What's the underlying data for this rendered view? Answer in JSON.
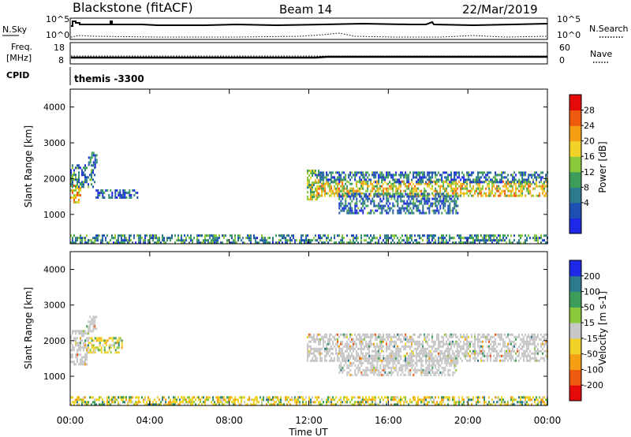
{
  "header": {
    "station": "Blackstone (fitACF)",
    "beam": "Beam 14",
    "date": "22/Mar/2019"
  },
  "top_panels": {
    "nsky_label": "N.Sky",
    "nsearch_label": "N.Search",
    "nsky_ticks": [
      "10^5",
      "10^0"
    ],
    "nsearch_ticks": [
      "10^5",
      "10^0"
    ],
    "freq_label_1": "Freq.",
    "freq_label_2": "[MHz]",
    "freq_ticks": [
      "18",
      "8"
    ],
    "nave_label": "Nave",
    "nave_ticks": [
      "60",
      "0"
    ],
    "cpid_label": "CPID",
    "cpid_value": "themis -3300"
  },
  "x_axis": {
    "title": "Time UT",
    "ticks": [
      "00:00",
      "04:00",
      "08:00",
      "12:00",
      "16:00",
      "20:00",
      "00:00"
    ]
  },
  "power_scale": {
    "title": "Power [dB]",
    "ticks": [
      "28",
      "24",
      "20",
      "16",
      "12",
      "8",
      "4"
    ],
    "colors": [
      "#1e28e6",
      "#1e50b4",
      "#2d7a8c",
      "#3c9d5a",
      "#8cc83c",
      "#f0d228",
      "#f5a014",
      "#f05a0f",
      "#e60a0a"
    ]
  },
  "velocity_scale": {
    "title": "Velocity [m s-1]",
    "ticks": [
      "200",
      "100",
      "50",
      "15",
      "-15",
      "-50",
      "-100",
      "-200"
    ],
    "colors": [
      "#e60a0a",
      "#f05a0f",
      "#f5a014",
      "#f0d228",
      "#c8c8c8",
      "#8cc83c",
      "#3c9d5a",
      "#2d7a8c",
      "#1e28e6"
    ]
  },
  "chart_data": [
    {
      "type": "heatmap",
      "name": "power",
      "xlabel": "Time UT",
      "ylabel": "Slant Range [km]",
      "xlim": [
        0,
        24
      ],
      "ylim": [
        180,
        4500
      ],
      "yticks": [
        1000,
        2000,
        3000,
        4000
      ],
      "colorbar": {
        "label": "Power [dB]",
        "range": [
          0,
          32
        ]
      },
      "regions": [
        {
          "t0": 0.0,
          "t1": 0.55,
          "r0": 1350,
          "r1": 1900,
          "value": 20
        },
        {
          "t0": 0.0,
          "t1": 1.25,
          "r0": 1800,
          "r1": 2400,
          "value": 9
        },
        {
          "t0": 0.9,
          "t1": 1.3,
          "r0": 2350,
          "r1": 2750,
          "value": 8
        },
        {
          "t0": 1.2,
          "t1": 3.4,
          "r0": 1450,
          "r1": 1700,
          "value": 6
        },
        {
          "t0": 0.0,
          "t1": 24.0,
          "r0": 200,
          "r1": 440,
          "value": 10
        },
        {
          "t0": 11.9,
          "t1": 12.5,
          "r0": 1450,
          "r1": 2250,
          "value": 17
        },
        {
          "t0": 12.3,
          "t1": 24.0,
          "r0": 1550,
          "r1": 1950,
          "value": 19
        },
        {
          "t0": 12.3,
          "t1": 24.0,
          "r0": 1900,
          "r1": 2200,
          "value": 8
        },
        {
          "t0": 13.5,
          "t1": 19.5,
          "r0": 1050,
          "r1": 1600,
          "value": 8
        }
      ]
    },
    {
      "type": "heatmap",
      "name": "velocity",
      "xlabel": "Time UT",
      "ylabel": "Slant Range [km]",
      "xlim": [
        0,
        24
      ],
      "ylim": [
        180,
        4500
      ],
      "yticks": [
        1000,
        2000,
        3000,
        4000
      ],
      "colorbar": {
        "label": "Velocity [m s-1]",
        "range": [
          -250,
          250
        ]
      },
      "regions": [
        {
          "t0": 0.0,
          "t1": 0.9,
          "r0": 1350,
          "r1": 2300,
          "value": 0
        },
        {
          "t0": 0.8,
          "t1": 1.3,
          "r0": 2300,
          "r1": 2700,
          "value": 0
        },
        {
          "t0": 0.9,
          "t1": 2.6,
          "r0": 1700,
          "r1": 2100,
          "value": -40
        },
        {
          "t0": 0.0,
          "t1": 24.0,
          "r0": 200,
          "r1": 440,
          "value": -40
        },
        {
          "t0": 11.9,
          "t1": 24.0,
          "r0": 1450,
          "r1": 2200,
          "value": 0
        },
        {
          "t0": 13.5,
          "t1": 19.5,
          "r0": 1050,
          "r1": 1600,
          "value": 0
        }
      ]
    }
  ]
}
